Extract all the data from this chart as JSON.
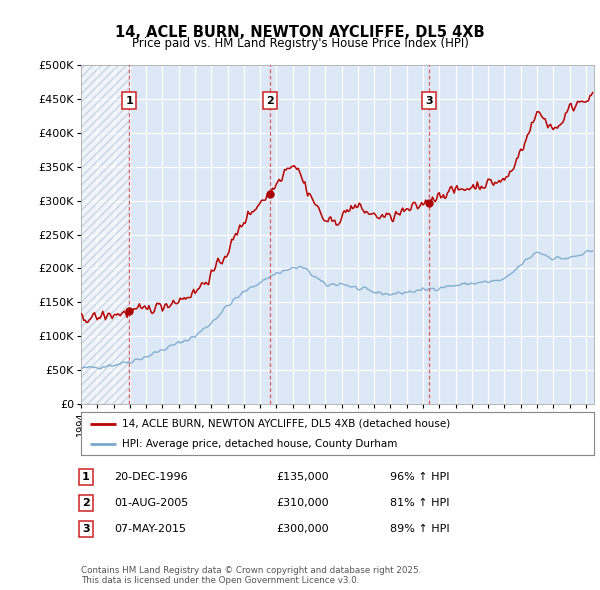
{
  "title": "14, ACLE BURN, NEWTON AYCLIFFE, DL5 4XB",
  "subtitle": "Price paid vs. HM Land Registry's House Price Index (HPI)",
  "ylim": [
    0,
    500000
  ],
  "yticks": [
    0,
    50000,
    100000,
    150000,
    200000,
    250000,
    300000,
    350000,
    400000,
    450000,
    500000
  ],
  "ytick_labels": [
    "£0",
    "£50K",
    "£100K",
    "£150K",
    "£200K",
    "£250K",
    "£300K",
    "£350K",
    "£400K",
    "£450K",
    "£500K"
  ],
  "xlim_start": 1994.0,
  "xlim_end": 2025.5,
  "transactions": [
    {
      "date_label": "20-DEC-1996",
      "year": 1996.97,
      "price": 135000,
      "label": "1",
      "pct": "96%",
      "direction": "↑"
    },
    {
      "date_label": "01-AUG-2005",
      "year": 2005.58,
      "price": 310000,
      "label": "2",
      "pct": "81%",
      "direction": "↑"
    },
    {
      "date_label": "07-MAY-2015",
      "year": 2015.35,
      "price": 300000,
      "label": "3",
      "pct": "89%",
      "direction": "↑"
    }
  ],
  "legend_line1": "14, ACLE BURN, NEWTON AYCLIFFE, DL5 4XB (detached house)",
  "legend_line2": "HPI: Average price, detached house, County Durham",
  "footer": "Contains HM Land Registry data © Crown copyright and database right 2025.\nThis data is licensed under the Open Government Licence v3.0.",
  "red_line_color": "#bb0000",
  "blue_line_color": "#7aa8cc",
  "marker_color": "#aa0000",
  "vline_color": "#dd4444",
  "background_plot": "#dce8f5",
  "title_fontsize": 10.5,
  "subtitle_fontsize": 8.5
}
